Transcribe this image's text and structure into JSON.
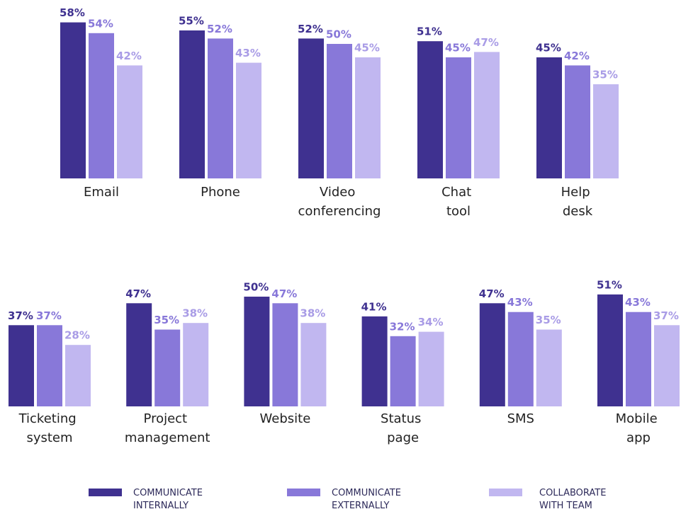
{
  "chart_data": {
    "type": "bar",
    "categories": [
      "Email",
      "Phone",
      "Video conferencing",
      "Chat tool",
      "Help desk",
      "Ticketing system",
      "Project management",
      "Website",
      "Status page",
      "SMS",
      "Mobile app"
    ],
    "series": [
      {
        "name": "COMMUNICATE INTERNALLY",
        "color": "#3f3190",
        "values": [
          58,
          55,
          52,
          51,
          45,
          37,
          47,
          50,
          41,
          47,
          51
        ],
        "value_labels": [
          "58%",
          "55%",
          "52%",
          "51%",
          "45%",
          "37%",
          "47%",
          "50%",
          "41%",
          "47%",
          "51%"
        ]
      },
      {
        "name": "COMMUNICATE EXTERNALLY",
        "color": "#8878d9",
        "values": [
          54,
          52,
          50,
          45,
          42,
          37,
          35,
          47,
          32,
          43,
          43
        ],
        "value_labels": [
          "54%",
          "52%",
          "50%",
          "45%",
          "42%",
          "37%",
          "35%",
          "47%",
          "32%",
          "43%",
          "43%"
        ]
      },
      {
        "name": "COLLABORATE WITH TEAM",
        "color": "#c1b7f0",
        "values": [
          42,
          43,
          45,
          47,
          35,
          28,
          38,
          38,
          34,
          35,
          37
        ],
        "value_labels": [
          "42%",
          "43%",
          "45%",
          "47%",
          "35%",
          "28%",
          "38%",
          "38%",
          "34%",
          "35%",
          "37%"
        ]
      }
    ]
  }
}
